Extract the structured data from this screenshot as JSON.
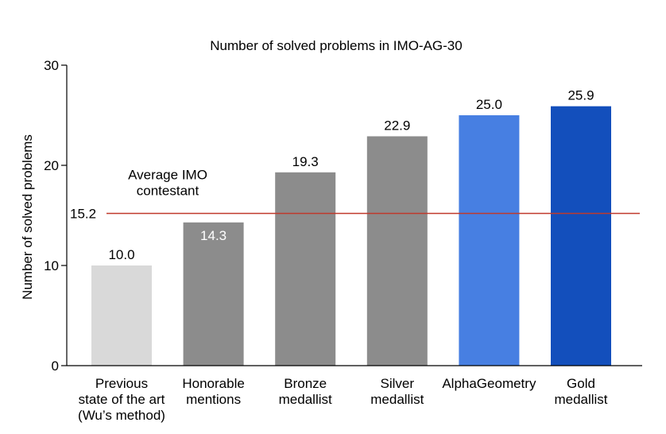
{
  "chart_data": {
    "type": "bar",
    "title": "Number of solved problems in IMO-AG-30",
    "xlabel": "",
    "ylabel": "Number of solved problems",
    "ylim": [
      0,
      30
    ],
    "yticks": [
      0,
      10,
      20,
      30
    ],
    "grid": false,
    "categories": [
      "Previous\nstate of the art\n(Wu’s method)",
      "Honorable\nmentions",
      "Bronze\nmedallist",
      "Silver\nmedallist",
      "AlphaGeometry",
      "Gold\nmedallist"
    ],
    "values": [
      10.0,
      14.3,
      19.3,
      22.9,
      25.0,
      25.9
    ],
    "value_labels": [
      "10.0",
      "14.3",
      "19.3",
      "22.9",
      "25.0",
      "25.9"
    ],
    "bar_colors": [
      "#d9d9d9",
      "#8c8c8c",
      "#8c8c8c",
      "#8c8c8c",
      "#477fe2",
      "#134fbc"
    ],
    "reference_line": {
      "value": 15.2,
      "value_label": "15.2",
      "label": "Average IMO\ncontestant",
      "color": "#c0392b"
    }
  }
}
